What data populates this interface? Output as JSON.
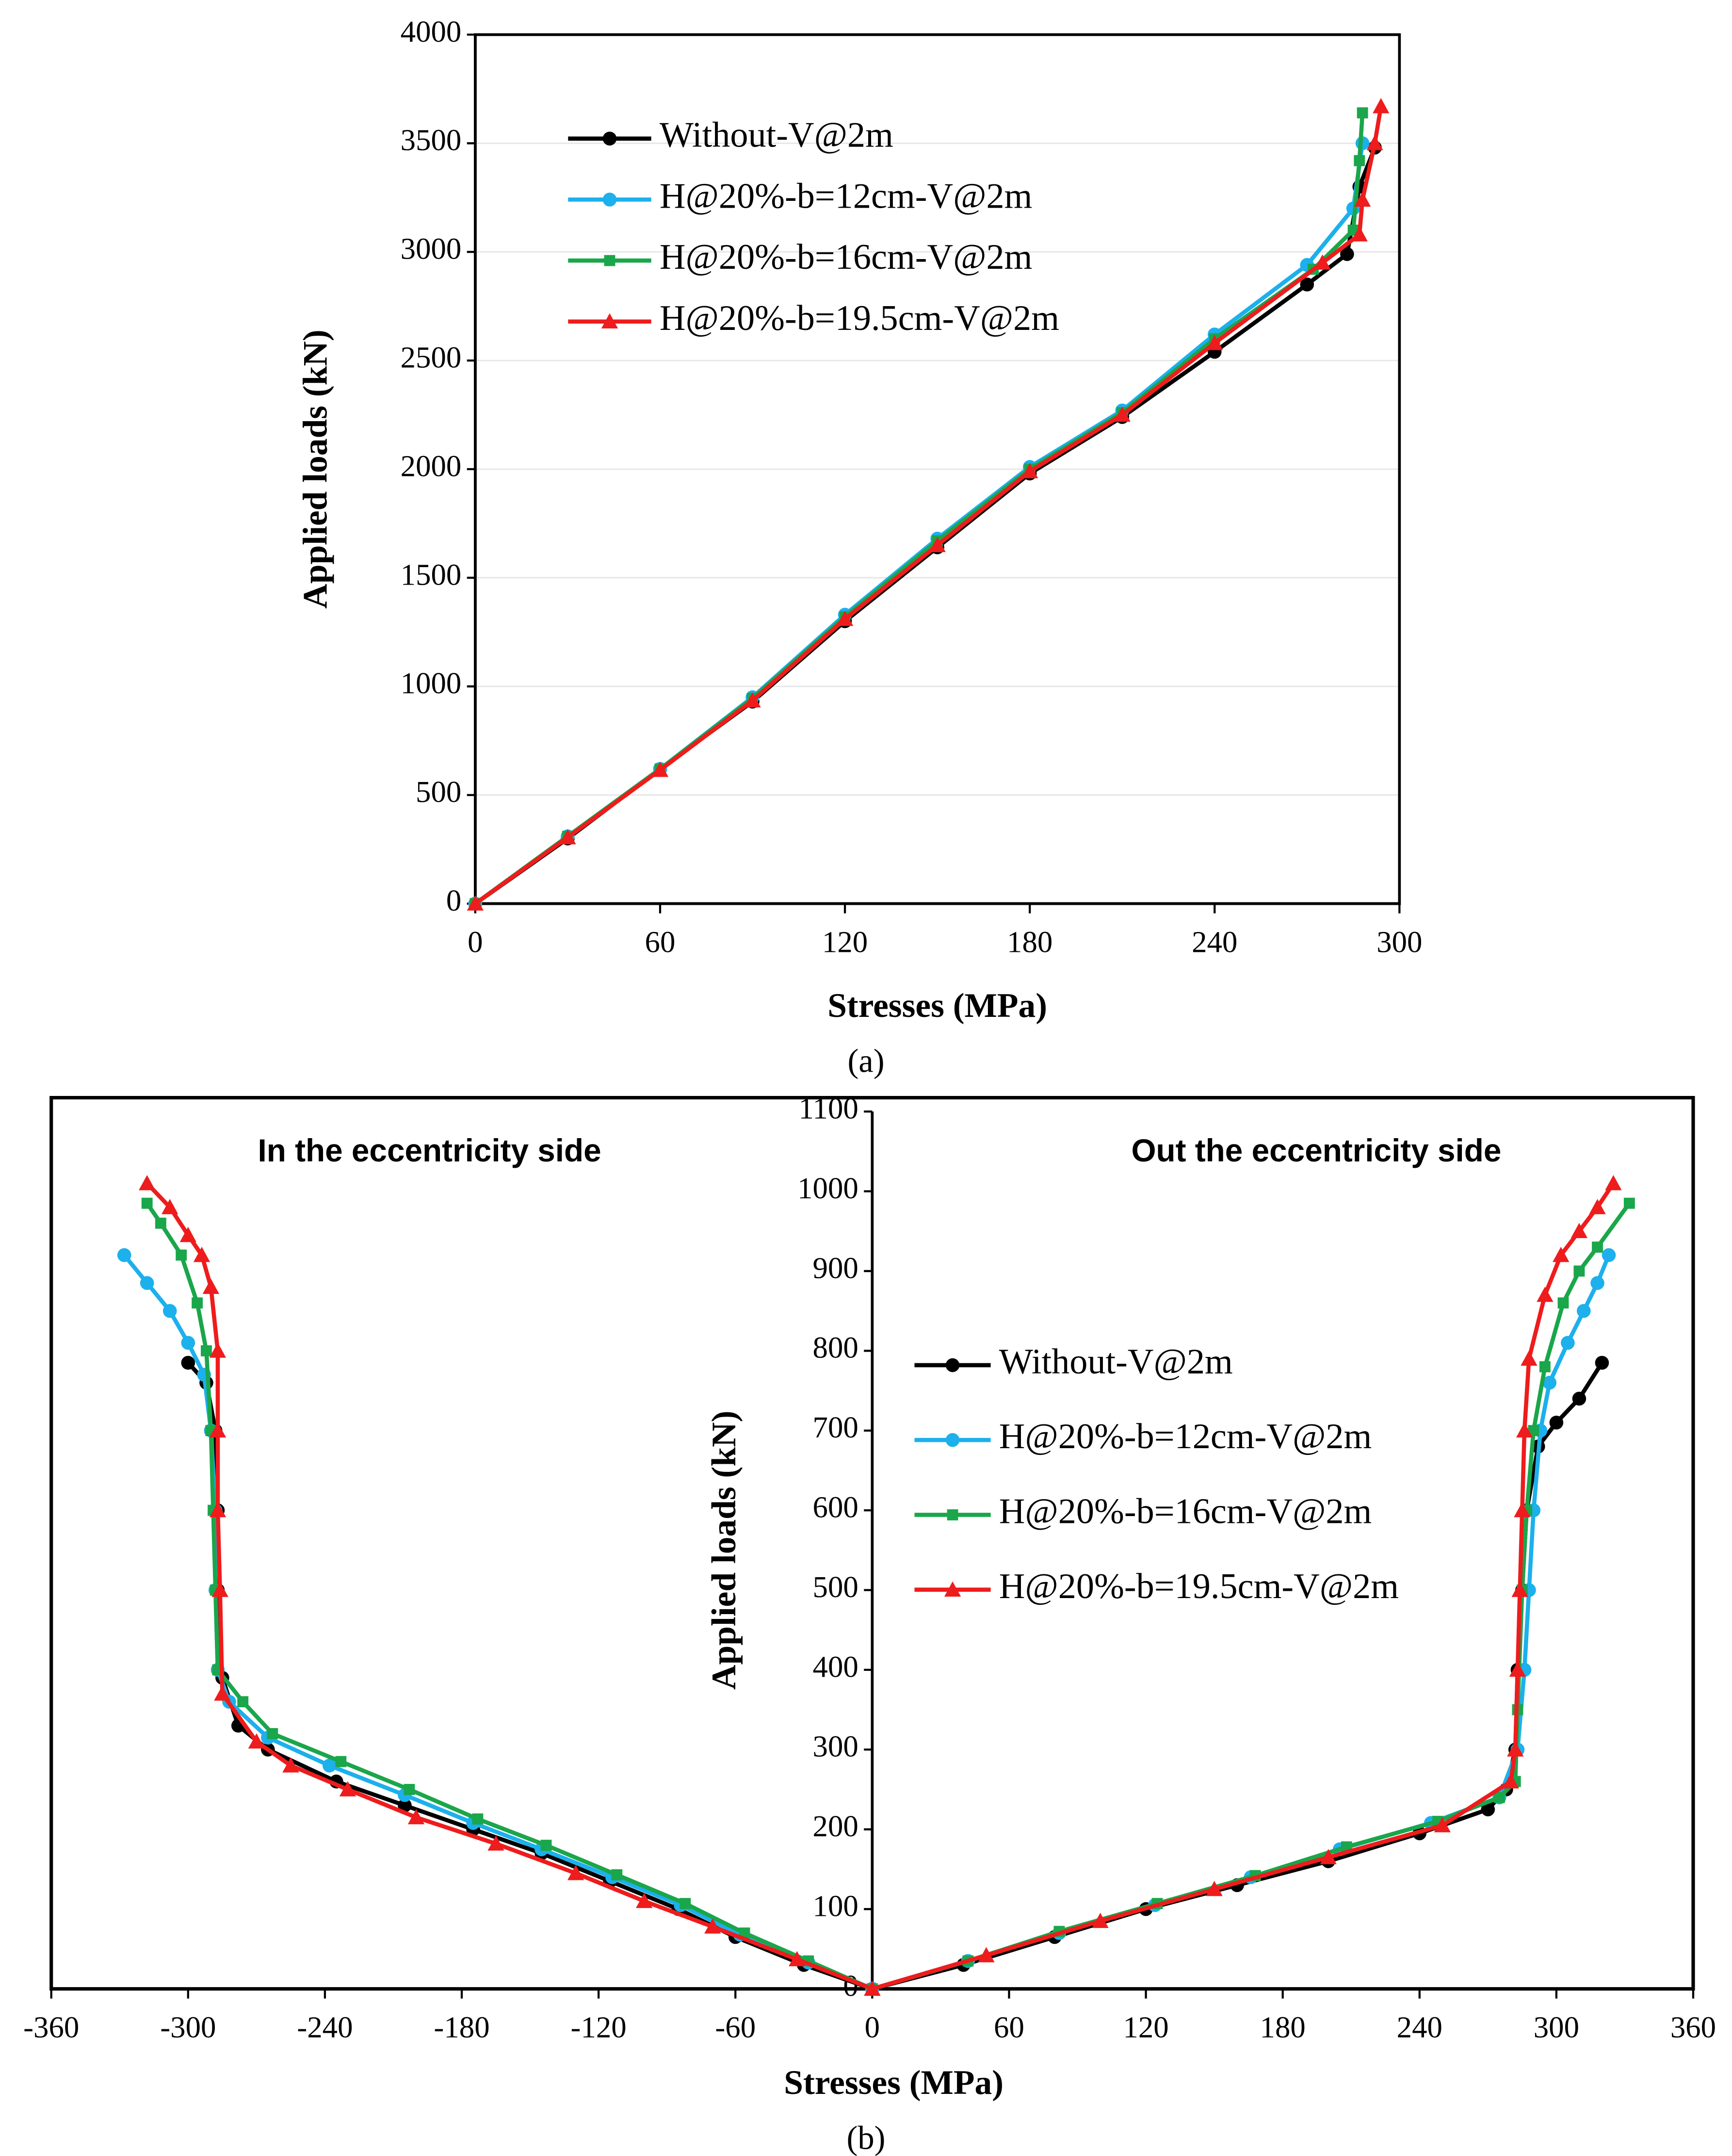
{
  "chart_data": [
    {
      "type": "line",
      "label": "(a)",
      "xlabel": "Stresses (MPa)",
      "ylabel": "Applied loads (kN)",
      "xlim": [
        0,
        300
      ],
      "xticks": [
        0,
        60,
        120,
        180,
        240,
        300
      ],
      "ylim": [
        0,
        4000
      ],
      "yticks": [
        0,
        500,
        1000,
        1500,
        2000,
        2500,
        3000,
        3500,
        4000
      ],
      "grid": true,
      "series": [
        {
          "name": "Without-V@2m",
          "color": "#000000",
          "marker": "circle",
          "x": [
            0,
            30,
            60,
            90,
            120,
            150,
            180,
            210,
            240,
            270,
            283,
            287,
            292
          ],
          "values": [
            0,
            300,
            620,
            930,
            1300,
            1640,
            1980,
            2240,
            2540,
            2850,
            2990,
            3300,
            3480
          ]
        },
        {
          "name": "H@20%-b=12cm-V@2m",
          "color": "#1cb0ec",
          "marker": "circle",
          "x": [
            0,
            30,
            60,
            90,
            120,
            150,
            180,
            210,
            240,
            270,
            285,
            288
          ],
          "values": [
            0,
            310,
            620,
            950,
            1330,
            1680,
            2010,
            2270,
            2620,
            2940,
            3200,
            3500
          ]
        },
        {
          "name": "H@20%-b=16cm-V@2m",
          "color": "#1aa64a",
          "marker": "square",
          "x": [
            0,
            30,
            60,
            90,
            120,
            150,
            180,
            210,
            240,
            272,
            285,
            287,
            288
          ],
          "values": [
            0,
            310,
            620,
            945,
            1320,
            1670,
            2000,
            2260,
            2600,
            2920,
            3100,
            3420,
            3640
          ]
        },
        {
          "name": "H@20%-b=19.5cm-V@2m",
          "color": "#ee1c1c",
          "marker": "triangle",
          "x": [
            0,
            30,
            60,
            90,
            120,
            150,
            180,
            210,
            240,
            275,
            287,
            288,
            292,
            294
          ],
          "values": [
            0,
            305,
            615,
            935,
            1310,
            1650,
            1990,
            2250,
            2580,
            2950,
            3080,
            3240,
            3500,
            3670
          ]
        }
      ]
    },
    {
      "type": "line",
      "label": "(b)",
      "xlabel": "Stresses (MPa)",
      "ylabel": "Applied loads (kN)",
      "annotations": [
        "In the eccentricity side",
        "Out the eccentricity side"
      ],
      "xlim": [
        -360,
        360
      ],
      "xticks": [
        -360,
        -300,
        -240,
        -180,
        -120,
        -60,
        0,
        60,
        120,
        180,
        240,
        300,
        360
      ],
      "ylim": [
        0,
        1100
      ],
      "yticks": [
        0,
        100,
        200,
        300,
        400,
        500,
        600,
        700,
        800,
        900,
        1000,
        1100
      ],
      "grid": false,
      "series": [
        {
          "name": "Without-V@2m",
          "color": "#000000",
          "marker": "circle",
          "x": [
            0,
            -30,
            -60,
            -85,
            -115,
            -145,
            -175,
            -205,
            -235,
            -265,
            -278,
            -285,
            -287,
            -287,
            -288,
            -292,
            -300,
            null,
            0,
            40,
            80,
            120,
            160,
            200,
            240,
            270,
            278,
            282,
            283,
            285,
            287,
            292,
            300,
            310,
            320
          ],
          "values": [
            0,
            30,
            65,
            100,
            135,
            170,
            200,
            230,
            260,
            300,
            330,
            390,
            500,
            600,
            700,
            760,
            785,
            null,
            0,
            30,
            65,
            100,
            130,
            160,
            195,
            225,
            250,
            300,
            400,
            500,
            600,
            680,
            710,
            740,
            785
          ]
        },
        {
          "name": "H@20%-b=12cm-V@2m",
          "color": "#1cb0ec",
          "marker": "circle",
          "x": [
            0,
            -28,
            -58,
            -84,
            -114,
            -145,
            -175,
            -205,
            -238,
            -265,
            -282,
            -287,
            -288,
            -288,
            -290,
            -293,
            -300,
            -308,
            -318,
            -328,
            null,
            0,
            42,
            82,
            124,
            166,
            205,
            245,
            275,
            283,
            286,
            288,
            290,
            293,
            297,
            305,
            312,
            318,
            323
          ],
          "values": [
            0,
            33,
            68,
            105,
            140,
            175,
            208,
            243,
            280,
            315,
            360,
            400,
            500,
            600,
            700,
            770,
            810,
            850,
            885,
            920,
            null,
            0,
            35,
            70,
            105,
            140,
            175,
            208,
            240,
            300,
            400,
            500,
            600,
            700,
            760,
            810,
            850,
            885,
            920
          ]
        },
        {
          "name": "H@20%-b=16cm-V@2m",
          "color": "#1aa64a",
          "marker": "square",
          "x": [
            0,
            -28,
            -56,
            -82,
            -112,
            -143,
            -173,
            -203,
            -233,
            -263,
            -276,
            -287,
            -288,
            -289,
            -290,
            -292,
            -296,
            -303,
            -312,
            -318,
            null,
            0,
            42,
            82,
            125,
            168,
            208,
            248,
            275,
            282,
            283,
            285,
            287,
            290,
            295,
            303,
            310,
            318,
            332
          ],
          "values": [
            0,
            35,
            70,
            107,
            143,
            180,
            213,
            250,
            285,
            320,
            360,
            400,
            500,
            600,
            700,
            800,
            860,
            920,
            960,
            985,
            null,
            0,
            35,
            72,
            107,
            142,
            178,
            210,
            240,
            260,
            350,
            500,
            600,
            700,
            780,
            860,
            900,
            930,
            985
          ]
        },
        {
          "name": "H@20%-b=19.5cm-V@2m",
          "color": "#ee1c1c",
          "marker": "triangle",
          "x": [
            0,
            -33,
            -70,
            -100,
            -130,
            -165,
            -200,
            -230,
            -255,
            -270,
            -285,
            -286,
            -287,
            -287,
            -287,
            -290,
            -294,
            -300,
            -308,
            -318,
            null,
            0,
            50,
            100,
            150,
            200,
            250,
            280,
            282,
            283,
            284,
            285,
            286,
            288,
            295,
            302,
            310,
            318,
            325
          ],
          "values": [
            0,
            37,
            78,
            110,
            145,
            182,
            215,
            250,
            280,
            310,
            370,
            500,
            600,
            700,
            800,
            880,
            920,
            945,
            980,
            1010,
            null,
            0,
            42,
            85,
            125,
            165,
            205,
            260,
            300,
            400,
            500,
            600,
            700,
            790,
            870,
            920,
            950,
            980,
            1010
          ]
        }
      ]
    }
  ]
}
